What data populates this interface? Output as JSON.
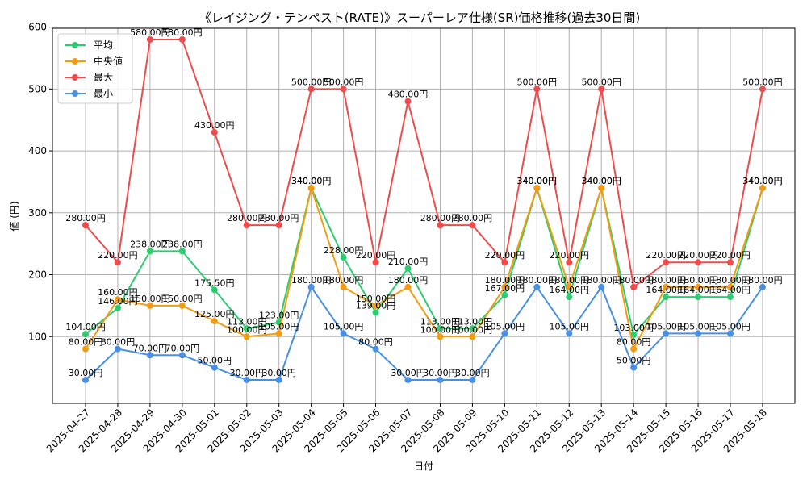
{
  "chart_data": {
    "type": "line",
    "title": "《レイジング・テンペスト(RATE)》スーパーレア仕様(SR)価格推移(過去30日間)",
    "xlabel": "日付",
    "ylabel": "値 (円)",
    "ylim": [
      0,
      600
    ],
    "yticks": [
      100,
      200,
      300,
      400,
      500,
      600
    ],
    "grid": true,
    "legend_position": "top-left",
    "value_suffix": "円",
    "categories": [
      "2025-04-27",
      "2025-04-28",
      "2025-04-29",
      "2025-04-30",
      "2025-05-01",
      "2025-05-02",
      "2025-05-03",
      "2025-05-04",
      "2025-05-05",
      "2025-05-06",
      "2025-05-07",
      "2025-05-08",
      "2025-05-09",
      "2025-05-10",
      "2025-05-11",
      "2025-05-12",
      "2025-05-13",
      "2025-05-14",
      "2025-05-15",
      "2025-05-16",
      "2025-05-17",
      "2025-05-18"
    ],
    "series": [
      {
        "name": "平均",
        "color": "#2ecc71",
        "values": [
          104,
          146,
          238,
          238,
          175.5,
          113,
          123,
          340,
          228,
          139,
          210,
          113,
          113,
          167,
          340,
          164,
          340,
          103,
          164,
          164,
          164,
          340
        ]
      },
      {
        "name": "中央値",
        "color": "#f39c12",
        "values": [
          80,
          160,
          150,
          150,
          125,
          100,
          105,
          340,
          180,
          150,
          180,
          100,
          100,
          180,
          340,
          180,
          340,
          80,
          180,
          180,
          180,
          340
        ]
      },
      {
        "name": "最大",
        "color": "#ef4b4b",
        "values": [
          280,
          220,
          580,
          580,
          430,
          280,
          280,
          500,
          500,
          220,
          480,
          280,
          280,
          220,
          500,
          220,
          500,
          180,
          220,
          220,
          220,
          500
        ]
      },
      {
        "name": "最小",
        "color": "#4a90e2",
        "values": [
          30,
          80,
          70,
          70,
          50,
          30,
          30,
          180,
          105,
          80,
          30,
          30,
          30,
          105,
          180,
          105,
          180,
          50,
          105,
          105,
          105,
          180
        ]
      }
    ]
  }
}
